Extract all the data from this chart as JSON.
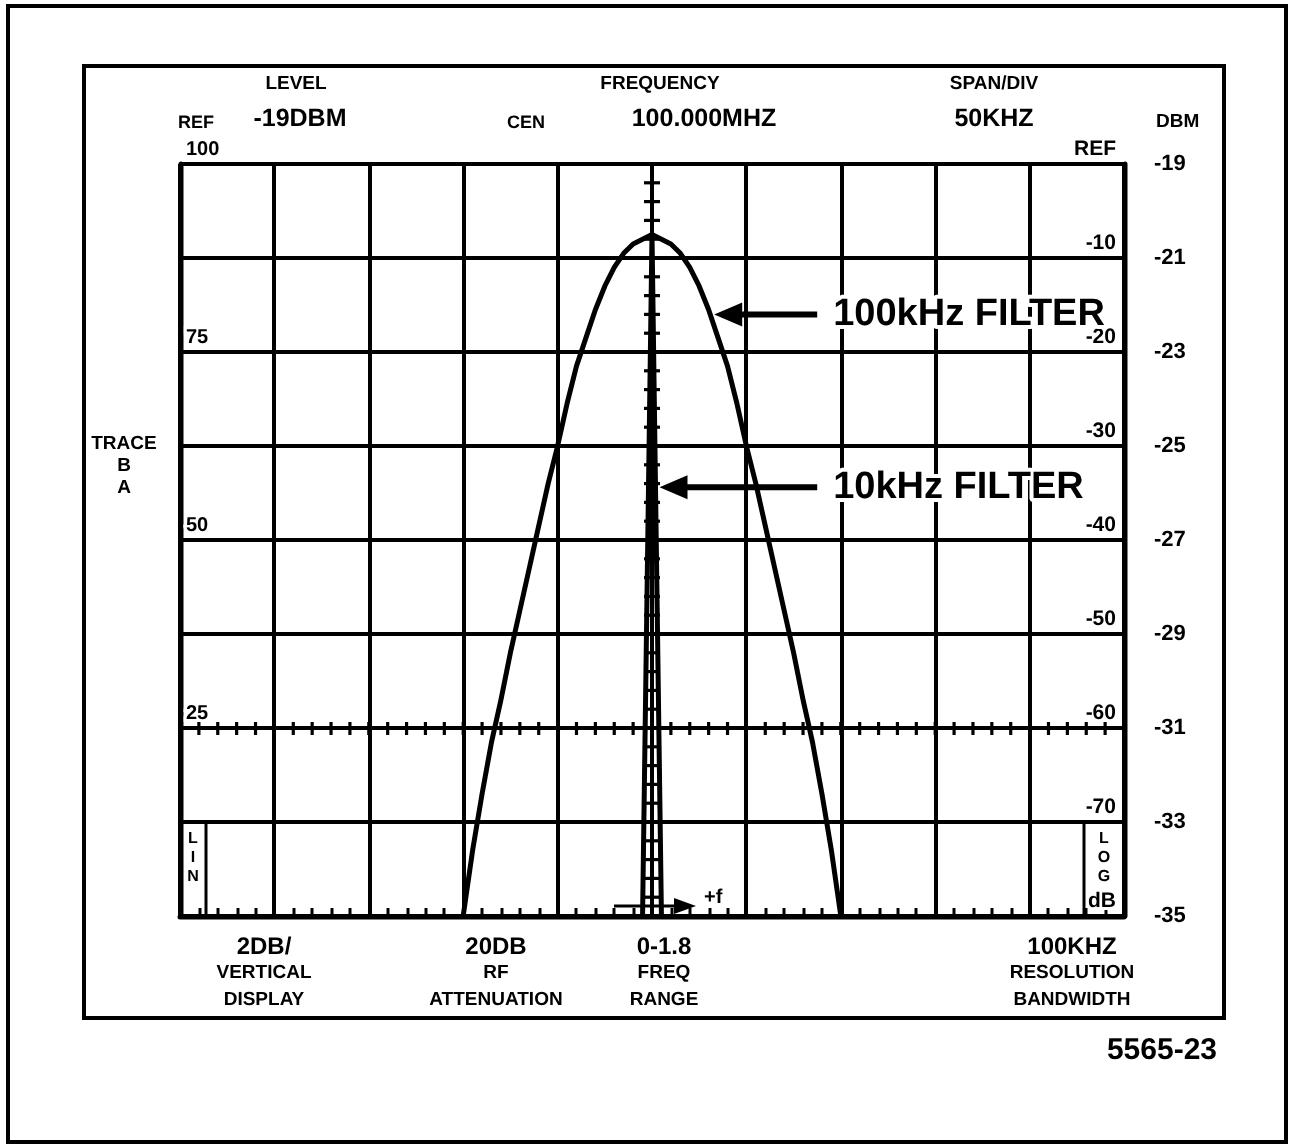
{
  "chart_data": {
    "type": "line",
    "categories": [
      null,
      null,
      null,
      null,
      null,
      null,
      null,
      null,
      null,
      null,
      null,
      null,
      null,
      null,
      null,
      null,
      null,
      null,
      null,
      null,
      null,
      null,
      null,
      null,
      null,
      null,
      null,
      null,
      null,
      null,
      null,
      null,
      null,
      null,
      null,
      null,
      null,
      null,
      null,
      null,
      null,
      null,
      null,
      null,
      null,
      null,
      null,
      null,
      null,
      null,
      null,
      null,
      null,
      null,
      null,
      null,
      null,
      null,
      null,
      null,
      null,
      null,
      null,
      null,
      null,
      null,
      null,
      null,
      null,
      null,
      null,
      null,
      null,
      null,
      null,
      null,
      null,
      null,
      null,
      null,
      null,
      null,
      null,
      null,
      null,
      null,
      null,
      null,
      null,
      null,
      null,
      null,
      null,
      null,
      null,
      null,
      null,
      null,
      null,
      null,
      null
    ],
    "series": [
      {
        "name": "100kHz FILTER",
        "color": "#000000",
        "values": [
          null,
          null,
          null,
          null,
          null,
          null,
          null,
          null,
          null,
          null,
          null,
          null,
          null,
          null,
          null,
          null,
          null,
          null,
          null,
          null,
          null,
          null,
          null,
          null,
          null,
          null,
          null,
          null,
          null,
          null,
          -35,
          -33.6,
          -32.4,
          -31.3,
          -30.4,
          -29.4,
          -28.5,
          -27.6,
          -26.7,
          -25.8,
          -25,
          -24.1,
          -23.3,
          -22.7,
          -22.1,
          -21.6,
          -21.2,
          -20.9,
          -20.7,
          -20.6,
          -20.5,
          -20.6,
          -20.7,
          -20.9,
          -21.2,
          -21.6,
          -22.1,
          -22.7,
          -23.3,
          -24.1,
          -25,
          -25.8,
          -26.7,
          -27.6,
          -28.5,
          -29.4,
          -30.4,
          -31.3,
          -32.4,
          -33.6,
          -35,
          null,
          null,
          null,
          null,
          null,
          null,
          null,
          null,
          null,
          null,
          null,
          null,
          null,
          null,
          null,
          null,
          null,
          null,
          null,
          null,
          null,
          null,
          null,
          null,
          null,
          null,
          null,
          null,
          null,
          null
        ]
      },
      {
        "name": "10kHz FILTER",
        "color": "#000000",
        "values": [
          null,
          null,
          null,
          null,
          null,
          null,
          null,
          null,
          null,
          null,
          null,
          null,
          null,
          null,
          null,
          null,
          null,
          null,
          null,
          null,
          null,
          null,
          null,
          null,
          null,
          null,
          null,
          null,
          null,
          null,
          null,
          null,
          null,
          null,
          null,
          null,
          null,
          null,
          null,
          null,
          null,
          null,
          null,
          null,
          null,
          null,
          null,
          null,
          null,
          -35,
          -20.5,
          -35,
          null,
          null,
          null,
          null,
          null,
          null,
          null,
          null,
          null,
          null,
          null,
          null,
          null,
          null,
          null,
          null,
          null,
          null,
          null,
          null,
          null,
          null,
          null,
          null,
          null,
          null,
          null,
          null,
          null,
          null,
          null,
          null,
          null,
          null,
          null,
          null,
          null,
          null,
          null,
          null,
          null,
          null,
          null,
          null,
          null,
          null,
          null,
          null,
          null
        ]
      }
    ],
    "ylabel": "DBM",
    "ylim": [
      -35,
      -19
    ],
    "yticks": [
      -35,
      -33,
      -31,
      -29,
      -27,
      -25,
      -23,
      -21,
      -19
    ],
    "y2lim": [
      0,
      100
    ],
    "y2ticks": [
      25,
      50,
      75,
      100
    ],
    "y3lim": [
      -80,
      0
    ],
    "y3ticks": [
      {
        "value": -80,
        "label": "dB"
      },
      -70,
      -60,
      -50,
      -40,
      -30,
      -20,
      -10,
      {
        "value": 0,
        "label": "REF"
      }
    ],
    "grid": true,
    "legend": "top right",
    "annotations": [
      "REF",
      "LEVEL",
      "-19DBM",
      "CEN",
      "FREQUENCY",
      "100.000MHZ",
      "SPAN/DIV",
      "50KHZ",
      "TRACE B A",
      "LIN",
      "LOG",
      "+f",
      "2DB/ VERTICAL DISPLAY",
      "20DB RF ATTENUATION",
      "0-1.8 FREQ RANGE",
      "100KHZ RESOLUTION BANDWIDTH",
      "5565-23"
    ]
  }
}
